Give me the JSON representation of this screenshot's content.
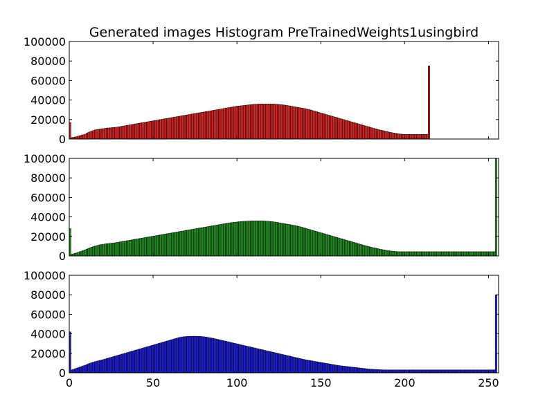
{
  "title": "Generated images Histogram PreTrainedWeights1usingbird",
  "colors": {
    "red": "#d62728",
    "green": "#238b23",
    "blue": "#1f1fd2",
    "edge": "#000000"
  },
  "chart_data": [
    {
      "type": "bar",
      "series_name": "red",
      "title": "Generated images Histogram PreTrainedWeights1usingbird",
      "xlim": [
        0,
        256
      ],
      "ylim": [
        0,
        100000
      ],
      "xticks": [],
      "yticks": [
        0,
        20000,
        40000,
        60000,
        80000,
        100000
      ],
      "ytick_labels": [
        "0",
        "20000",
        "40000",
        "60000",
        "80000",
        "100000"
      ],
      "color": "#d62728",
      "values": [
        17000,
        1500,
        1800,
        2100,
        2500,
        3000,
        3500,
        4000,
        4500,
        5000,
        6000,
        6800,
        7500,
        8200,
        8800,
        9300,
        9700,
        10000,
        10300,
        10500,
        10700,
        11000,
        11200,
        11400,
        11500,
        11700,
        11900,
        12000,
        12200,
        12500,
        12800,
        13100,
        13400,
        13700,
        14000,
        14300,
        14600,
        14900,
        15200,
        15500,
        15800,
        16100,
        16400,
        16700,
        17000,
        17300,
        17600,
        17900,
        18200,
        18500,
        18800,
        19100,
        19400,
        19700,
        20000,
        20300,
        20600,
        20900,
        21200,
        21500,
        21800,
        22100,
        22400,
        22700,
        23000,
        23300,
        23600,
        23900,
        24200,
        24500,
        24800,
        25100,
        25400,
        25700,
        26000,
        26300,
        26600,
        26900,
        27200,
        27500,
        27800,
        28100,
        28400,
        28700,
        29000,
        29300,
        29600,
        29900,
        30200,
        30500,
        30800,
        31100,
        31400,
        31700,
        32000,
        32300,
        32600,
        32900,
        33200,
        33500,
        33700,
        33900,
        34100,
        34300,
        34500,
        34700,
        34900,
        35100,
        35300,
        35500,
        35600,
        35700,
        35800,
        35900,
        36000,
        36000,
        36000,
        36000,
        36000,
        36000,
        36000,
        35900,
        35800,
        35700,
        35600,
        35400,
        35200,
        35000,
        34800,
        34500,
        34200,
        33900,
        33600,
        33300,
        33000,
        32700,
        32400,
        32100,
        31800,
        31500,
        31200,
        30800,
        30400,
        30000,
        29500,
        29000,
        28500,
        28000,
        27500,
        27000,
        26500,
        26000,
        25500,
        25000,
        24500,
        24000,
        23500,
        23000,
        22500,
        22000,
        21500,
        21000,
        20500,
        20000,
        19500,
        19000,
        18500,
        18000,
        17500,
        17000,
        16500,
        16000,
        15500,
        15000,
        14500,
        14000,
        13500,
        13000,
        12500,
        12000,
        11500,
        11000,
        10500,
        10000,
        9600,
        9200,
        8800,
        8400,
        8000,
        7600,
        7200,
        6800,
        6500,
        6200,
        5900,
        5600,
        5300,
        5100,
        4900,
        4800,
        4700,
        4700,
        4700,
        4700,
        4700,
        4700,
        4700,
        4700,
        4700,
        4700,
        4700,
        4700,
        4700,
        4800,
        75000
      ]
    },
    {
      "type": "bar",
      "series_name": "green",
      "xlim": [
        0,
        256
      ],
      "ylim": [
        0,
        100000
      ],
      "xticks": [],
      "yticks": [
        0,
        20000,
        40000,
        60000,
        80000,
        100000
      ],
      "ytick_labels": [
        "0",
        "20000",
        "40000",
        "60000",
        "80000",
        "100000"
      ],
      "color": "#238b23",
      "values": [
        28000,
        1800,
        2200,
        2700,
        3200,
        3800,
        4400,
        5000,
        5600,
        6300,
        7000,
        7700,
        8400,
        9000,
        9600,
        10100,
        10600,
        11000,
        11400,
        11700,
        12000,
        12300,
        12500,
        12700,
        12900,
        13100,
        13300,
        13500,
        13800,
        14100,
        14400,
        14700,
        15000,
        15300,
        15600,
        15900,
        16200,
        16500,
        16800,
        17100,
        17400,
        17700,
        18000,
        18300,
        18600,
        18900,
        19200,
        19500,
        19800,
        20100,
        20400,
        20700,
        21000,
        21300,
        21600,
        21900,
        22200,
        22500,
        22800,
        23100,
        23400,
        23700,
        24000,
        24300,
        24600,
        24900,
        25200,
        25500,
        25800,
        26100,
        26400,
        26700,
        27000,
        27300,
        27600,
        27900,
        28200,
        28500,
        28800,
        29100,
        29400,
        29700,
        30000,
        30300,
        30600,
        30900,
        31200,
        31500,
        31800,
        32100,
        32400,
        32700,
        33000,
        33300,
        33600,
        33900,
        34100,
        34300,
        34500,
        34700,
        34900,
        35100,
        35300,
        35400,
        35500,
        35600,
        35700,
        35800,
        35900,
        36000,
        36000,
        36000,
        36000,
        36000,
        36000,
        35900,
        35800,
        35700,
        35600,
        35400,
        35200,
        35000,
        34800,
        34500,
        34200,
        33900,
        33600,
        33300,
        33000,
        32700,
        32400,
        32100,
        31800,
        31500,
        31200,
        30800,
        30400,
        30000,
        29500,
        29000,
        28500,
        28000,
        27500,
        27000,
        26500,
        26000,
        25500,
        25000,
        24500,
        24000,
        23500,
        23000,
        22500,
        22000,
        21500,
        21000,
        20500,
        20000,
        19500,
        19000,
        18500,
        18000,
        17500,
        17000,
        16500,
        16000,
        15500,
        15000,
        14500,
        14000,
        13500,
        13000,
        12500,
        12000,
        11500,
        11000,
        10500,
        10000,
        9600,
        9200,
        8800,
        8400,
        8000,
        7600,
        7200,
        6800,
        6500,
        6200,
        5900,
        5600,
        5300,
        5100,
        4900,
        4700,
        4500,
        4400,
        4300,
        4300,
        4300,
        4300,
        4300,
        4300,
        4300,
        4300,
        4300,
        4300,
        4300,
        4300,
        4300,
        4300,
        4300,
        4300,
        4300,
        4300,
        4300,
        4300,
        4300,
        4300,
        4300,
        4300,
        4300,
        4300,
        4300,
        4300,
        4300,
        4300,
        4300,
        4300,
        4300,
        4300,
        4300,
        4300,
        4300,
        4300,
        4300,
        4300,
        4300,
        4300,
        4300,
        4300,
        4300,
        4300,
        4300,
        4300,
        4300,
        4300,
        4300,
        4300,
        4300,
        4300,
        4300,
        4300,
        4300,
        4400,
        100000
      ]
    },
    {
      "type": "bar",
      "series_name": "blue",
      "xlim": [
        0,
        256
      ],
      "ylim": [
        0,
        100000
      ],
      "xticks": [
        0,
        50,
        100,
        150,
        200,
        250
      ],
      "xtick_labels": [
        "0",
        "50",
        "100",
        "150",
        "200",
        "250"
      ],
      "yticks": [
        0,
        20000,
        40000,
        60000,
        80000,
        100000
      ],
      "ytick_labels": [
        "0",
        "20000",
        "40000",
        "60000",
        "80000",
        "100000"
      ],
      "color": "#1f1fd2",
      "values": [
        42000,
        3000,
        3600,
        4200,
        4800,
        5400,
        6000,
        6600,
        7200,
        7800,
        8500,
        9200,
        9900,
        10500,
        11000,
        11500,
        12000,
        12400,
        12800,
        13200,
        13700,
        14200,
        14700,
        15200,
        15700,
        16200,
        16700,
        17200,
        17700,
        18200,
        18700,
        19200,
        19700,
        20200,
        20700,
        21200,
        21700,
        22200,
        22700,
        23200,
        23700,
        24200,
        24700,
        25200,
        25700,
        26200,
        26700,
        27200,
        27700,
        28200,
        28700,
        29200,
        29700,
        30200,
        30700,
        31200,
        31700,
        32200,
        32700,
        33200,
        33700,
        34200,
        34700,
        35200,
        35700,
        36200,
        36500,
        36800,
        37000,
        37200,
        37300,
        37400,
        37500,
        37500,
        37500,
        37500,
        37500,
        37400,
        37300,
        37100,
        36900,
        36700,
        36400,
        36100,
        35800,
        35500,
        35100,
        34700,
        34300,
        33900,
        33500,
        33100,
        32700,
        32300,
        31900,
        31500,
        31100,
        30700,
        30300,
        29900,
        29500,
        29100,
        28700,
        28300,
        27900,
        27500,
        27100,
        26700,
        26300,
        25900,
        25500,
        25100,
        24700,
        24300,
        23900,
        23500,
        23100,
        22700,
        22300,
        21900,
        21500,
        21100,
        20700,
        20300,
        19900,
        19500,
        19100,
        18700,
        18300,
        17900,
        17500,
        17100,
        16700,
        16300,
        15900,
        15500,
        15100,
        14700,
        14300,
        13900,
        13500,
        13200,
        12900,
        12600,
        12300,
        12000,
        11700,
        11400,
        11100,
        10800,
        10500,
        10200,
        9900,
        9600,
        9300,
        9000,
        8700,
        8400,
        8100,
        7800,
        7500,
        7300,
        7100,
        6900,
        6700,
        6500,
        6300,
        6100,
        5900,
        5700,
        5500,
        5300,
        5100,
        4900,
        4700,
        4500,
        4300,
        4100,
        3900,
        3800,
        3700,
        3600,
        3500,
        3400,
        3300,
        3200,
        3100,
        3000,
        3000,
        3000,
        3000,
        3000,
        3000,
        3000,
        3000,
        3000,
        3000,
        3000,
        3000,
        3000,
        3000,
        3000,
        3000,
        3000,
        3000,
        3000,
        3000,
        3000,
        3000,
        3000,
        3000,
        3000,
        3000,
        3000,
        3000,
        3000,
        3000,
        3000,
        3000,
        3000,
        3000,
        3000,
        3000,
        3000,
        3000,
        3000,
        3000,
        3000,
        3000,
        3000,
        3000,
        3000,
        3000,
        3000,
        3000,
        3000,
        3000,
        3000,
        3000,
        3000,
        3000,
        3000,
        3000,
        3000,
        3000,
        3000,
        3000,
        3000,
        3000,
        3000,
        3000,
        3000,
        3000,
        3100,
        80000
      ]
    }
  ]
}
